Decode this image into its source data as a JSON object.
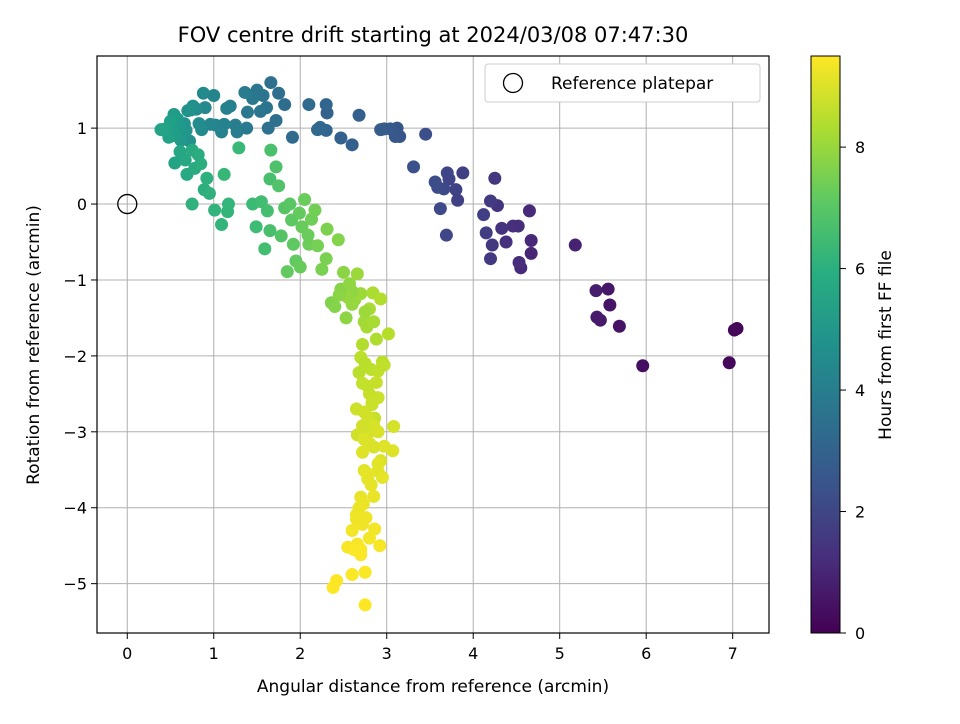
{
  "chart_data": {
    "type": "scatter",
    "title": "FOV centre drift starting at 2024/03/08 07:47:30",
    "xlabel": "Angular distance from reference (arcmin)",
    "ylabel": "Rotation from reference (arcmin)",
    "xlim": [
      -0.35,
      7.42
    ],
    "ylim": [
      -5.65,
      1.95
    ],
    "xticks": [
      0,
      1,
      2,
      3,
      4,
      5,
      6,
      7
    ],
    "yticks": [
      -5,
      -4,
      -3,
      -2,
      -1,
      0,
      1
    ],
    "grid": true,
    "legend": {
      "position": "top-right",
      "entries": [
        "Reference platepar"
      ]
    },
    "reference_point": {
      "x": 0,
      "y": 0
    },
    "colorbar": {
      "label": "Hours from first FF file",
      "range": [
        0,
        9.5
      ],
      "ticks": [
        0,
        2,
        4,
        6,
        8
      ],
      "colormap": "viridis"
    },
    "points": [
      [
        7.05,
        -1.64,
        0.1
      ],
      [
        7.02,
        -1.66,
        0.15
      ],
      [
        6.96,
        -2.09,
        0.2
      ],
      [
        5.96,
        -2.13,
        0.35
      ],
      [
        5.69,
        -1.61,
        0.5
      ],
      [
        5.58,
        -1.33,
        0.55
      ],
      [
        5.56,
        -1.12,
        0.6
      ],
      [
        5.47,
        -1.53,
        0.65
      ],
      [
        5.43,
        -1.49,
        0.7
      ],
      [
        5.42,
        -1.14,
        0.75
      ],
      [
        5.18,
        -0.54,
        0.9
      ],
      [
        4.67,
        -0.65,
        1.0
      ],
      [
        4.67,
        -0.48,
        1.05
      ],
      [
        4.65,
        -0.09,
        1.1
      ],
      [
        4.55,
        -0.84,
        1.15
      ],
      [
        4.53,
        -0.77,
        1.2
      ],
      [
        4.52,
        -0.29,
        1.25
      ],
      [
        4.46,
        -0.29,
        1.3
      ],
      [
        4.38,
        -0.5,
        1.35
      ],
      [
        4.33,
        -0.32,
        1.4
      ],
      [
        4.28,
        -0.02,
        1.45
      ],
      [
        4.25,
        0.34,
        1.5
      ],
      [
        4.22,
        -0.54,
        1.55
      ],
      [
        4.2,
        -0.72,
        1.6
      ],
      [
        4.2,
        0.04,
        1.65
      ],
      [
        4.15,
        -0.38,
        1.7
      ],
      [
        4.12,
        -0.14,
        1.75
      ],
      [
        3.88,
        0.41,
        1.8
      ],
      [
        3.82,
        0.05,
        1.85
      ],
      [
        3.8,
        0.19,
        1.9
      ],
      [
        3.72,
        0.33,
        1.95
      ],
      [
        3.7,
        0.41,
        2.0
      ],
      [
        3.69,
        -0.41,
        2.05
      ],
      [
        3.66,
        0.2,
        2.1
      ],
      [
        3.62,
        -0.06,
        2.15
      ],
      [
        3.59,
        0.22,
        2.2
      ],
      [
        3.56,
        0.29,
        2.25
      ],
      [
        3.45,
        0.92,
        2.3
      ],
      [
        3.31,
        0.49,
        2.4
      ],
      [
        3.15,
        0.89,
        2.5
      ],
      [
        3.12,
        1.0,
        2.55
      ],
      [
        3.1,
        0.89,
        2.6
      ],
      [
        3.04,
        0.99,
        2.65
      ],
      [
        2.97,
        0.99,
        2.7
      ],
      [
        2.93,
        0.98,
        2.75
      ],
      [
        2.68,
        1.17,
        2.85
      ],
      [
        2.6,
        0.78,
        2.9
      ],
      [
        2.47,
        0.87,
        2.95
      ],
      [
        2.31,
        1.2,
        3.0
      ],
      [
        2.3,
        1.31,
        3.05
      ],
      [
        2.3,
        0.97,
        3.1
      ],
      [
        2.23,
        1.01,
        3.15
      ],
      [
        2.2,
        0.98,
        3.2
      ],
      [
        2.1,
        1.31,
        3.25
      ],
      [
        1.91,
        0.88,
        3.3
      ],
      [
        1.82,
        1.31,
        3.35
      ],
      [
        1.75,
        1.46,
        3.4
      ],
      [
        1.72,
        1.1,
        3.45
      ],
      [
        1.66,
        1.6,
        3.5
      ],
      [
        1.63,
        1.0,
        3.55
      ],
      [
        1.61,
        1.27,
        3.6
      ],
      [
        1.57,
        1.43,
        3.65
      ],
      [
        1.54,
        1.22,
        3.7
      ],
      [
        1.5,
        1.5,
        3.75
      ],
      [
        1.45,
        1.39,
        3.8
      ],
      [
        1.39,
        1.21,
        3.85
      ],
      [
        1.38,
        1.0,
        3.9
      ],
      [
        1.36,
        1.47,
        3.95
      ],
      [
        1.27,
        0.95,
        4.0
      ],
      [
        1.25,
        1.04,
        4.05
      ],
      [
        1.19,
        1.29,
        4.1
      ],
      [
        1.15,
        1.26,
        4.15
      ],
      [
        1.12,
        1.05,
        4.2
      ],
      [
        1.09,
        0.95,
        4.25
      ],
      [
        1.02,
        1.04,
        4.3
      ],
      [
        1.0,
        1.43,
        4.35
      ],
      [
        0.96,
        1.05,
        4.4
      ],
      [
        0.9,
        1.27,
        4.45
      ],
      [
        0.88,
        1.46,
        4.5
      ],
      [
        0.86,
        0.98,
        4.55
      ],
      [
        0.83,
        1.06,
        4.6
      ],
      [
        0.8,
        1.25,
        4.65
      ],
      [
        0.76,
        1.29,
        4.7
      ],
      [
        0.74,
        1.24,
        4.75
      ],
      [
        0.72,
        0.83,
        4.8
      ],
      [
        0.7,
        1.23,
        4.85
      ],
      [
        0.68,
        0.97,
        4.9
      ],
      [
        0.66,
        1.06,
        4.95
      ],
      [
        0.64,
        0.93,
        5.0
      ],
      [
        0.62,
        0.84,
        5.05
      ],
      [
        0.6,
        1.04,
        5.1
      ],
      [
        0.58,
        1.12,
        5.15
      ],
      [
        0.56,
        0.9,
        5.2
      ],
      [
        0.54,
        1.18,
        5.25
      ],
      [
        0.52,
        0.97,
        5.3
      ],
      [
        0.5,
        1.09,
        5.35
      ],
      [
        0.48,
        0.88,
        5.4
      ],
      [
        0.44,
        0.99,
        5.45
      ],
      [
        0.39,
        0.98,
        5.5
      ],
      [
        0.55,
        0.54,
        5.55
      ],
      [
        0.61,
        0.69,
        5.6
      ],
      [
        0.67,
        0.58,
        5.65
      ],
      [
        0.69,
        0.39,
        5.7
      ],
      [
        0.75,
        0.71,
        5.75
      ],
      [
        0.78,
        0.47,
        5.8
      ],
      [
        0.82,
        0.65,
        5.85
      ],
      [
        0.85,
        0.53,
        5.9
      ],
      [
        0.89,
        0.19,
        5.95
      ],
      [
        0.92,
        0.34,
        6.0
      ],
      [
        0.95,
        0.14,
        6.05
      ],
      [
        0.75,
        0.0,
        6.1
      ],
      [
        1.01,
        -0.08,
        6.15
      ],
      [
        1.09,
        -0.27,
        6.2
      ],
      [
        1.16,
        -0.1,
        6.25
      ],
      [
        1.17,
        0.0,
        6.3
      ],
      [
        1.12,
        0.39,
        6.35
      ],
      [
        1.29,
        0.74,
        6.4
      ],
      [
        1.45,
        0.0,
        6.45
      ],
      [
        1.49,
        -0.3,
        6.5
      ],
      [
        1.55,
        0.03,
        6.55
      ],
      [
        1.59,
        -0.59,
        6.6
      ],
      [
        1.62,
        -0.09,
        6.65
      ],
      [
        1.65,
        0.33,
        6.7
      ],
      [
        1.66,
        0.71,
        6.75
      ],
      [
        1.72,
        0.49,
        6.8
      ],
      [
        1.75,
        0.24,
        6.85
      ],
      [
        1.78,
        -0.42,
        6.9
      ],
      [
        1.82,
        -0.05,
        6.95
      ],
      [
        1.88,
        0.0,
        7.0
      ],
      [
        1.9,
        -0.21,
        7.05
      ],
      [
        1.92,
        -0.53,
        7.1
      ],
      [
        1.95,
        -0.75,
        7.15
      ],
      [
        1.99,
        -0.12,
        7.2
      ],
      [
        2.02,
        -0.3,
        7.25
      ],
      [
        2.05,
        0.06,
        7.3
      ],
      [
        2.1,
        -0.53,
        7.35
      ],
      [
        2.13,
        -0.2,
        7.4
      ],
      [
        2.17,
        -0.08,
        7.45
      ],
      [
        2.2,
        -0.55,
        7.5
      ],
      [
        2.25,
        -0.86,
        7.55
      ],
      [
        2.31,
        -0.33,
        7.6
      ],
      [
        2.36,
        -1.3,
        7.65
      ],
      [
        2.44,
        -0.47,
        7.7
      ],
      [
        2.47,
        -1.12,
        7.75
      ],
      [
        2.5,
        -0.9,
        7.8
      ],
      [
        2.53,
        -1.5,
        7.85
      ],
      [
        2.57,
        -1.05,
        7.9
      ],
      [
        2.6,
        -1.32,
        7.95
      ],
      [
        2.63,
        -1.26,
        8.0
      ],
      [
        2.66,
        -0.92,
        8.05
      ],
      [
        2.7,
        -1.18,
        8.1
      ],
      [
        2.74,
        -1.55,
        8.15
      ],
      [
        2.77,
        -1.62,
        8.2
      ],
      [
        2.8,
        -1.38,
        8.25
      ],
      [
        2.84,
        -1.17,
        8.3
      ],
      [
        2.88,
        -1.78,
        8.35
      ],
      [
        2.93,
        -1.25,
        8.4
      ],
      [
        3.02,
        -1.71,
        8.45
      ],
      [
        2.95,
        -2.08,
        8.5
      ],
      [
        2.7,
        -2.02,
        8.55
      ],
      [
        2.78,
        -2.4,
        8.6
      ],
      [
        2.83,
        -2.64,
        8.65
      ],
      [
        2.86,
        -2.82,
        8.7
      ],
      [
        2.9,
        -2.55,
        8.75
      ],
      [
        2.74,
        -2.74,
        8.8
      ],
      [
        2.66,
        -3.04,
        8.85
      ],
      [
        2.8,
        -3.0,
        8.9
      ],
      [
        2.85,
        -3.2,
        8.95
      ],
      [
        2.93,
        -3.38,
        9.0
      ],
      [
        2.97,
        -3.19,
        9.05
      ],
      [
        2.74,
        -3.51,
        9.1
      ],
      [
        2.82,
        -3.7,
        9.15
      ],
      [
        2.7,
        -3.86,
        9.2
      ],
      [
        2.65,
        -4.09,
        9.25
      ],
      [
        2.76,
        -4.13,
        9.3
      ],
      [
        2.86,
        -4.28,
        9.35
      ],
      [
        2.92,
        -4.5,
        9.4
      ],
      [
        2.7,
        -4.62,
        9.45
      ],
      [
        2.6,
        -4.88,
        9.45
      ],
      [
        2.75,
        -5.28,
        9.5
      ],
      [
        1.85,
        -0.89,
        7.15
      ],
      [
        1.65,
        -0.35,
        6.7
      ],
      [
        2.09,
        -0.41,
        7.3
      ],
      [
        2.0,
        -0.83,
        7.25
      ],
      [
        2.3,
        -0.72,
        7.55
      ],
      [
        2.6,
        -1.15,
        7.9
      ],
      [
        2.75,
        -1.42,
        8.1
      ],
      [
        2.55,
        -1.23,
        7.95
      ],
      [
        2.45,
        -1.2,
        7.8
      ],
      [
        2.4,
        -1.35,
        7.7
      ],
      [
        2.85,
        -1.55,
        8.25
      ],
      [
        2.72,
        -1.85,
        8.4
      ],
      [
        2.68,
        -2.22,
        8.5
      ],
      [
        2.75,
        -2.1,
        8.5
      ],
      [
        2.82,
        -2.18,
        8.55
      ],
      [
        2.9,
        -2.2,
        8.6
      ],
      [
        2.97,
        -2.12,
        8.6
      ],
      [
        2.72,
        -2.36,
        8.65
      ],
      [
        2.8,
        -2.5,
        8.7
      ],
      [
        2.88,
        -2.35,
        8.7
      ],
      [
        2.65,
        -2.7,
        8.8
      ],
      [
        2.78,
        -2.8,
        8.85
      ],
      [
        2.85,
        -2.92,
        8.9
      ],
      [
        2.9,
        -3.0,
        8.95
      ],
      [
        2.74,
        -3.1,
        9.0
      ],
      [
        2.8,
        -3.15,
        9.0
      ],
      [
        3.08,
        -2.93,
        8.9
      ],
      [
        3.07,
        -3.25,
        9.05
      ],
      [
        2.72,
        -3.27,
        9.05
      ],
      [
        2.9,
        -3.52,
        9.1
      ],
      [
        2.78,
        -3.62,
        9.15
      ],
      [
        2.85,
        -3.85,
        9.2
      ],
      [
        2.68,
        -4.0,
        9.25
      ],
      [
        2.72,
        -4.22,
        9.3
      ],
      [
        2.8,
        -4.4,
        9.35
      ],
      [
        2.66,
        -4.48,
        9.4
      ],
      [
        2.55,
        -4.52,
        9.4
      ],
      [
        2.62,
        -4.55,
        9.45
      ],
      [
        2.7,
        -4.55,
        9.45
      ],
      [
        2.38,
        -5.05,
        9.5
      ],
      [
        2.42,
        -4.96,
        9.5
      ],
      [
        2.75,
        -4.85,
        9.45
      ],
      [
        2.6,
        -4.3,
        9.35
      ],
      [
        2.65,
        -4.15,
        9.3
      ],
      [
        2.73,
        -3.95,
        9.25
      ],
      [
        2.78,
        -3.55,
        9.15
      ],
      [
        2.72,
        -2.92,
        8.85
      ],
      [
        2.95,
        -3.6,
        9.15
      ],
      [
        2.9,
        -3.42,
        9.1
      ],
      [
        2.83,
        -2.62,
        8.75
      ]
    ]
  }
}
